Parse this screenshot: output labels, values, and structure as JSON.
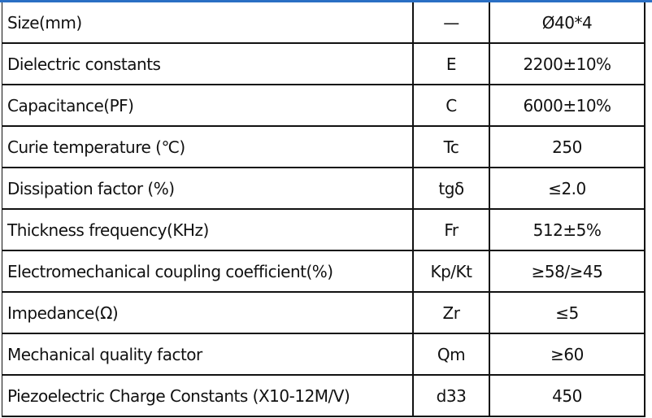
{
  "colors": {
    "top_strip": "#2a6fc4",
    "border": "#111111"
  },
  "rows": [
    {
      "parameter": "Size(mm)",
      "symbol": "—",
      "value": "Ø40*4"
    },
    {
      "parameter": "Dielectric constants",
      "symbol": "E",
      "value": "2200±10%"
    },
    {
      "parameter": "Capacitance(PF)",
      "symbol": "C",
      "value": "6000±10%"
    },
    {
      "parameter": "Curie temperature (℃)",
      "symbol": "Tc",
      "value": "250"
    },
    {
      "parameter": "Dissipation factor (%)",
      "symbol": "tgδ",
      "value": "≤2.0"
    },
    {
      "parameter": "Thickness frequency(KHz)",
      "symbol": "Fr",
      "value": "512±5%"
    },
    {
      "parameter": "Electromechanical coupling coefficient(%)",
      "symbol": "Kp/Kt",
      "value": "≥58/≥45"
    },
    {
      "parameter": "Impedance(Ω)",
      "symbol": "Zr",
      "value": "≤5"
    },
    {
      "parameter": "Mechanical quality factor",
      "symbol": "Qm",
      "value": "≥60"
    },
    {
      "parameter": "Piezoelectric Charge Constants (X10-12M/V)",
      "symbol": "d33",
      "value": "450"
    }
  ]
}
